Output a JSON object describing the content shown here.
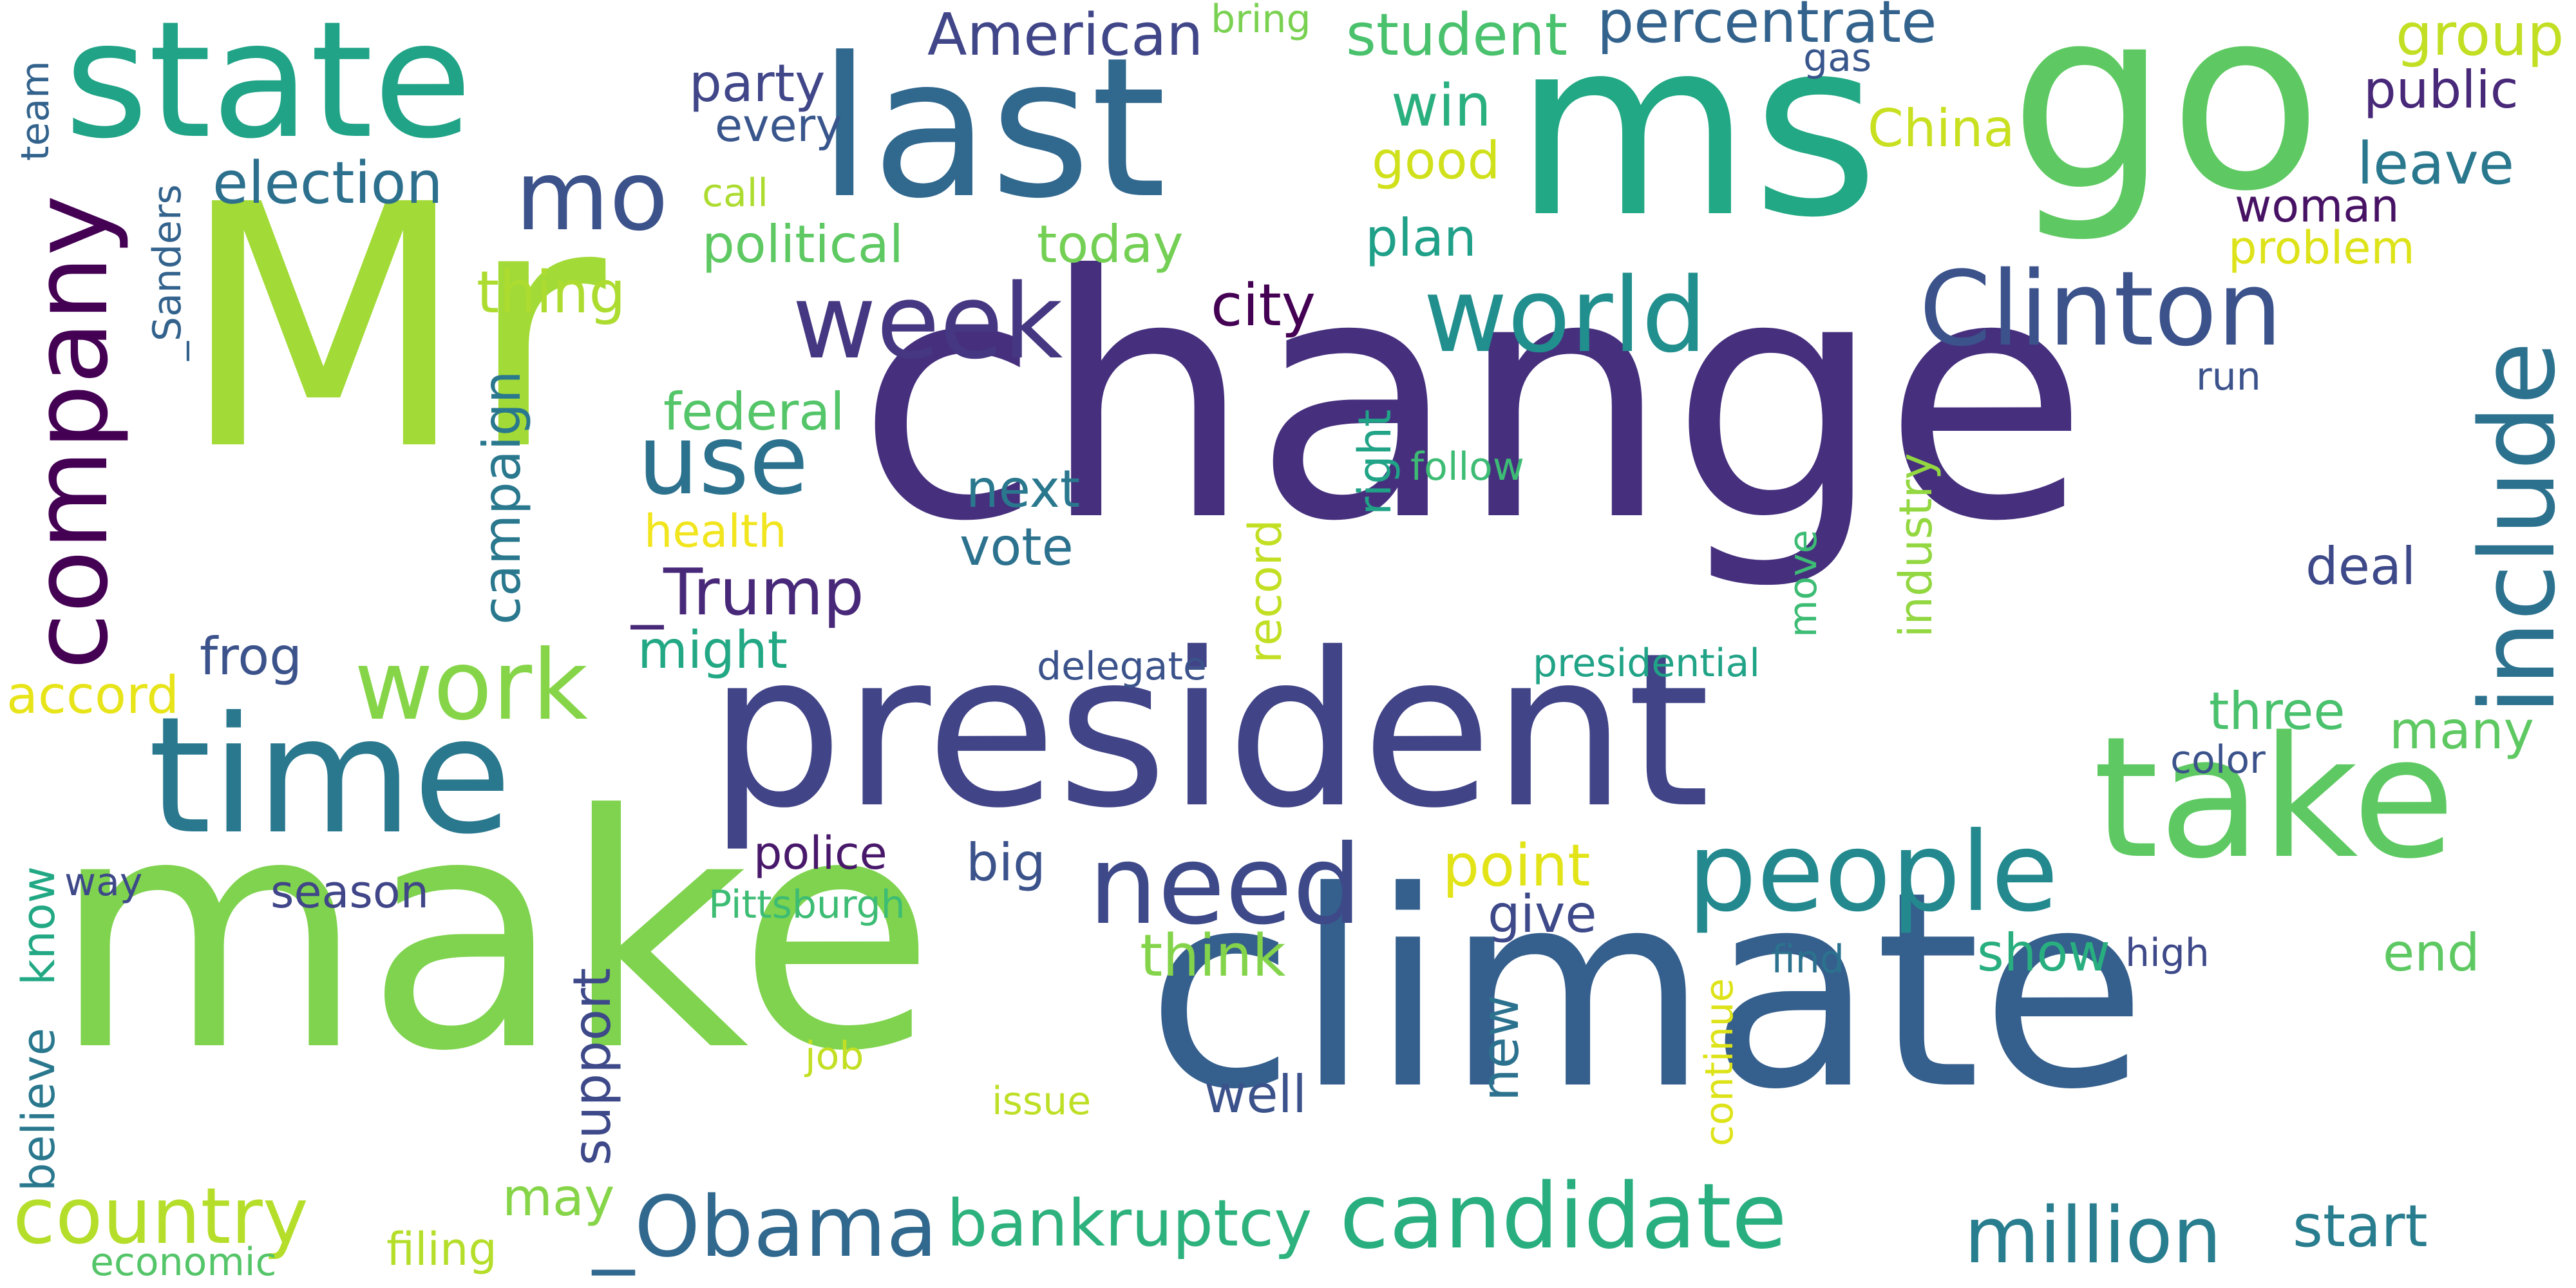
{
  "words": [
    {
      "text": "Mr",
      "color": "#a2da37"
    },
    {
      "text": "change",
      "color": "#46307e"
    },
    {
      "text": "make",
      "color": "#7fd34e"
    },
    {
      "text": "climate",
      "color": "#355f8d"
    },
    {
      "text": "president",
      "color": "#414487"
    },
    {
      "text": "ms",
      "color": "#22a884"
    },
    {
      "text": "go",
      "color": "#5ec962"
    },
    {
      "text": "last",
      "color": "#31688e"
    },
    {
      "text": "state",
      "color": "#20a386"
    },
    {
      "text": "time",
      "color": "#2a788e"
    },
    {
      "text": "take",
      "color": "#5ec962"
    },
    {
      "text": "candidate",
      "color": "#29af7f"
    },
    {
      "text": "people",
      "color": "#23898e"
    },
    {
      "text": "need",
      "color": "#3e4989"
    },
    {
      "text": "world",
      "color": "#218f8d"
    },
    {
      "text": "Clinton",
      "color": "#3b528b"
    },
    {
      "text": "week",
      "color": "#453781"
    },
    {
      "text": "company",
      "color": "#440154"
    },
    {
      "text": "include",
      "color": "#2c728e"
    },
    {
      "text": "_Obama",
      "color": "#31688e"
    },
    {
      "text": "million",
      "color": "#287d8e"
    },
    {
      "text": "country",
      "color": "#b5de2b"
    },
    {
      "text": "work",
      "color": "#86d549"
    },
    {
      "text": "use",
      "color": "#2c728e"
    },
    {
      "text": "mo",
      "color": "#3b528b"
    },
    {
      "text": "bankruptcy",
      "color": "#2db27d"
    },
    {
      "text": "start",
      "color": "#287d8e"
    },
    {
      "text": "_Trump",
      "color": "#482878"
    },
    {
      "text": "American",
      "color": "#404688"
    },
    {
      "text": "student",
      "color": "#4ac16d"
    },
    {
      "text": "percentrate",
      "color": "#33638d"
    },
    {
      "text": "election",
      "color": "#2d708e"
    },
    {
      "text": "political",
      "color": "#5ec962"
    },
    {
      "text": "today",
      "color": "#74d055"
    },
    {
      "text": "party",
      "color": "#404688"
    },
    {
      "text": "every",
      "color": "#39568c"
    },
    {
      "text": "bring",
      "color": "#7ad151"
    },
    {
      "text": "gas",
      "color": "#39568c"
    },
    {
      "text": "group",
      "color": "#c2df23"
    },
    {
      "text": "public",
      "color": "#482878"
    },
    {
      "text": "China",
      "color": "#c8e020"
    },
    {
      "text": "leave",
      "color": "#2a788e"
    },
    {
      "text": "woman",
      "color": "#471164"
    },
    {
      "text": "problem",
      "color": "#dde318"
    },
    {
      "text": "win",
      "color": "#2ab07f"
    },
    {
      "text": "good",
      "color": "#d0e11c"
    },
    {
      "text": "call",
      "color": "#addc30"
    },
    {
      "text": "plan",
      "color": "#1fa088"
    },
    {
      "text": "thing",
      "color": "#addc30"
    },
    {
      "text": "city",
      "color": "#440154"
    },
    {
      "text": "team",
      "color": "#33638d"
    },
    {
      "text": "_Sanders",
      "color": "#33638d"
    },
    {
      "text": "campaign",
      "color": "#2a788e"
    },
    {
      "text": "federal",
      "color": "#54c568"
    },
    {
      "text": "right",
      "color": "#20a386"
    },
    {
      "text": "follow",
      "color": "#3dbc74"
    },
    {
      "text": "industry",
      "color": "#93d741"
    },
    {
      "text": "run",
      "color": "#3b528b"
    },
    {
      "text": "next",
      "color": "#2a788e"
    },
    {
      "text": "health",
      "color": "#f1e51d"
    },
    {
      "text": "vote",
      "color": "#2c728e"
    },
    {
      "text": "record",
      "color": "#c2df23"
    },
    {
      "text": "move",
      "color": "#3dbc74"
    },
    {
      "text": "deal",
      "color": "#3e4989"
    },
    {
      "text": "frog",
      "color": "#3b528b"
    },
    {
      "text": "might",
      "color": "#22a884"
    },
    {
      "text": "delegate",
      "color": "#3b528b"
    },
    {
      "text": "presidential",
      "color": "#20a386"
    },
    {
      "text": "accord",
      "color": "#e7e419"
    },
    {
      "text": "three",
      "color": "#4ac16d"
    },
    {
      "text": "many",
      "color": "#5ec962"
    },
    {
      "text": "color",
      "color": "#3b528b"
    },
    {
      "text": "police",
      "color": "#48186a"
    },
    {
      "text": "big",
      "color": "#3b528b"
    },
    {
      "text": "point",
      "color": "#e2e418"
    },
    {
      "text": "way",
      "color": "#3e4989"
    },
    {
      "text": "season",
      "color": "#404688"
    },
    {
      "text": "Pittsburgh",
      "color": "#3dbc74"
    },
    {
      "text": "know",
      "color": "#22a884"
    },
    {
      "text": "believe",
      "color": "#2a788e"
    },
    {
      "text": "give",
      "color": "#3e4989"
    },
    {
      "text": "think",
      "color": "#84d44b"
    },
    {
      "text": "show",
      "color": "#29af7f"
    },
    {
      "text": "high",
      "color": "#3e4989"
    },
    {
      "text": "end",
      "color": "#5ec962"
    },
    {
      "text": "continue",
      "color": "#dde318"
    },
    {
      "text": "find",
      "color": "#2c728e"
    },
    {
      "text": "new",
      "color": "#2c728e"
    },
    {
      "text": "support",
      "color": "#3e4989"
    },
    {
      "text": "job",
      "color": "#c2df23"
    },
    {
      "text": "issue",
      "color": "#bddf26"
    },
    {
      "text": "well",
      "color": "#3b528b"
    },
    {
      "text": "may",
      "color": "#86d549"
    },
    {
      "text": "filing",
      "color": "#b5de2b"
    },
    {
      "text": "economic",
      "color": "#54c568"
    }
  ]
}
